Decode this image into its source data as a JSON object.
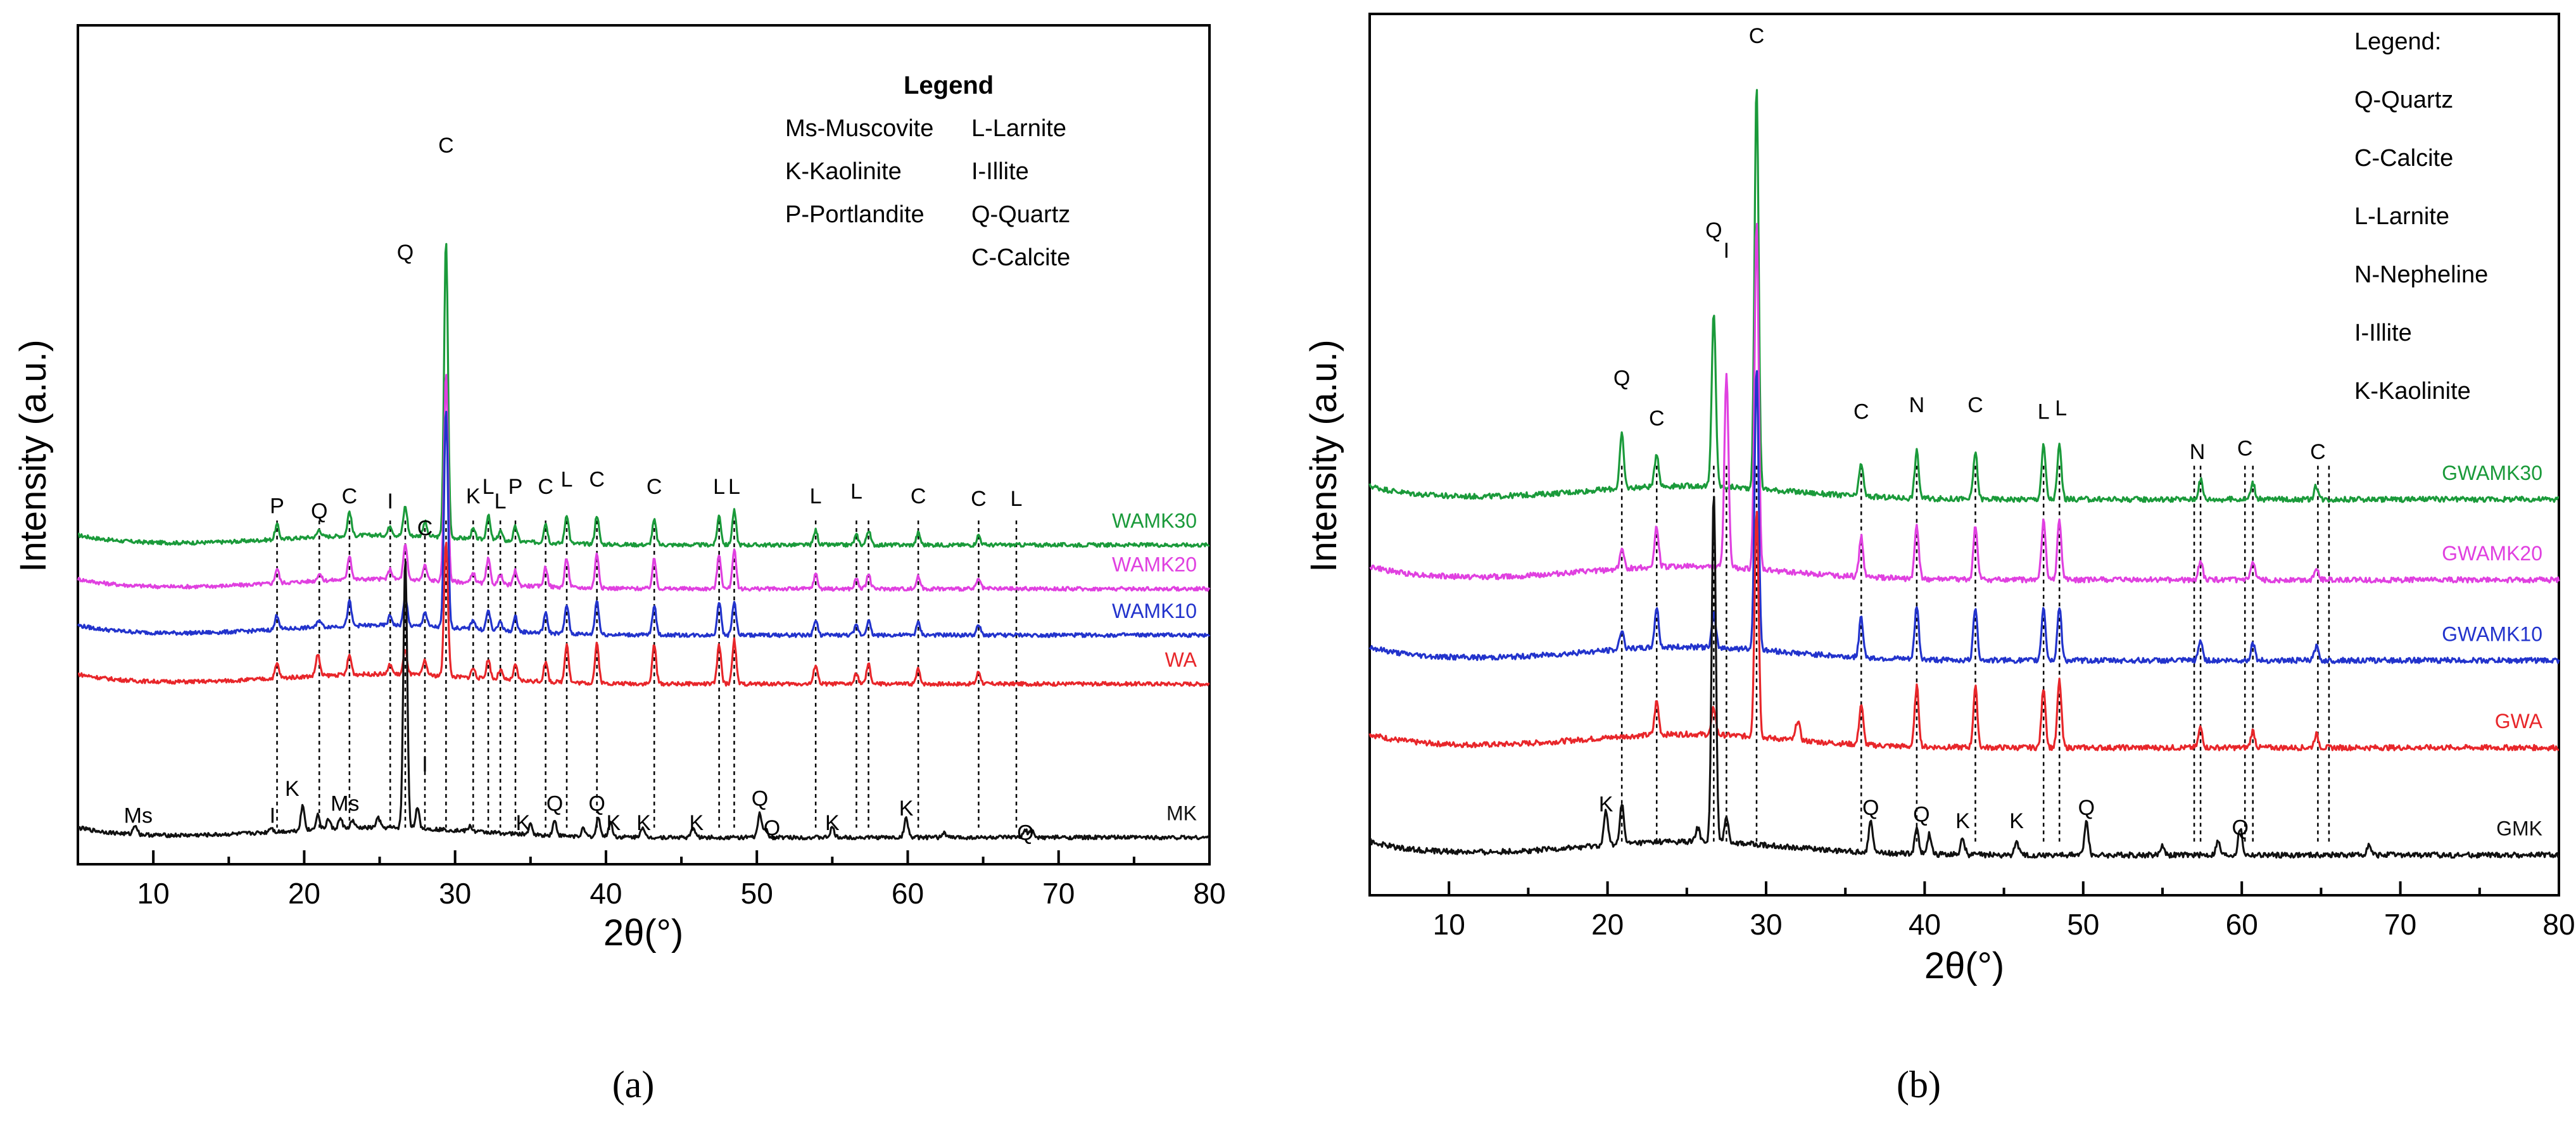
{
  "chart_data": [
    {
      "type": "line",
      "panel_label": "(a)",
      "xlabel": "2θ(°)",
      "ylabel": "Intensity (a.u.)",
      "xlim": [
        5,
        80
      ],
      "xticks": [
        10,
        20,
        30,
        40,
        50,
        60,
        70,
        80
      ],
      "legend_title": "Legend",
      "legend_items": [
        "Ms-Muscovite",
        "K-Kaolinite",
        "P-Portlandite",
        "L-Larnite",
        "I-Illite",
        "Q-Quartz",
        "C-Calcite"
      ],
      "series": [
        {
          "name": "WAMK30",
          "color": "#1a9a3a",
          "baseline": 0.655,
          "peaks": [
            [
              18.2,
              0.03
            ],
            [
              21,
              0.015
            ],
            [
              23,
              0.05
            ],
            [
              25.7,
              0.02
            ],
            [
              26.7,
              0.06
            ],
            [
              28,
              0.03
            ],
            [
              29.4,
              0.61
            ],
            [
              31.2,
              0.02
            ],
            [
              32.2,
              0.05
            ],
            [
              33,
              0.02
            ],
            [
              34,
              0.03
            ],
            [
              36,
              0.04
            ],
            [
              37.4,
              0.06
            ],
            [
              39.4,
              0.06
            ],
            [
              43.2,
              0.05
            ],
            [
              47.5,
              0.06
            ],
            [
              48.5,
              0.07
            ],
            [
              53.9,
              0.03
            ],
            [
              56.6,
              0.02
            ],
            [
              57.4,
              0.03
            ],
            [
              60.7,
              0.025
            ],
            [
              64.7,
              0.02
            ]
          ]
        },
        {
          "name": "WAMK20",
          "color": "#e040e0",
          "baseline": 0.565,
          "peaks": [
            [
              18.2,
              0.03
            ],
            [
              21,
              0.015
            ],
            [
              23,
              0.05
            ],
            [
              25.7,
              0.02
            ],
            [
              26.7,
              0.07
            ],
            [
              28,
              0.03
            ],
            [
              29.4,
              0.43
            ],
            [
              31.2,
              0.02
            ],
            [
              32.2,
              0.05
            ],
            [
              33,
              0.02
            ],
            [
              34,
              0.03
            ],
            [
              36,
              0.04
            ],
            [
              37.4,
              0.06
            ],
            [
              39.4,
              0.07
            ],
            [
              43.2,
              0.06
            ],
            [
              47.5,
              0.07
            ],
            [
              48.5,
              0.08
            ],
            [
              53.9,
              0.03
            ],
            [
              56.6,
              0.02
            ],
            [
              57.4,
              0.03
            ],
            [
              60.7,
              0.025
            ],
            [
              64.7,
              0.02
            ]
          ]
        },
        {
          "name": "WAMK10",
          "color": "#2233cc",
          "baseline": 0.47,
          "peaks": [
            [
              18.2,
              0.03
            ],
            [
              21,
              0.015
            ],
            [
              23,
              0.05
            ],
            [
              25.7,
              0.02
            ],
            [
              26.7,
              0.06
            ],
            [
              28,
              0.03
            ],
            [
              29.4,
              0.45
            ],
            [
              31.2,
              0.02
            ],
            [
              32.2,
              0.04
            ],
            [
              33,
              0.02
            ],
            [
              34,
              0.03
            ],
            [
              36,
              0.04
            ],
            [
              37.4,
              0.06
            ],
            [
              39.4,
              0.07
            ],
            [
              43.2,
              0.06
            ],
            [
              47.5,
              0.07
            ],
            [
              48.5,
              0.07
            ],
            [
              53.9,
              0.03
            ],
            [
              56.6,
              0.02
            ],
            [
              57.4,
              0.03
            ],
            [
              60.7,
              0.025
            ],
            [
              64.7,
              0.02
            ]
          ]
        },
        {
          "name": "WA",
          "color": "#e8262a",
          "baseline": 0.37,
          "peaks": [
            [
              18.2,
              0.03
            ],
            [
              20.9,
              0.045
            ],
            [
              23,
              0.04
            ],
            [
              25.7,
              0.02
            ],
            [
              26.7,
              0.05
            ],
            [
              28,
              0.03
            ],
            [
              29.4,
              0.28
            ],
            [
              31.2,
              0.02
            ],
            [
              32.2,
              0.04
            ],
            [
              33,
              0.02
            ],
            [
              34,
              0.03
            ],
            [
              36,
              0.04
            ],
            [
              37.4,
              0.08
            ],
            [
              39.4,
              0.08
            ],
            [
              43.2,
              0.08
            ],
            [
              47.5,
              0.08
            ],
            [
              48.5,
              0.09
            ],
            [
              53.9,
              0.04
            ],
            [
              56.6,
              0.02
            ],
            [
              57.4,
              0.04
            ],
            [
              60.7,
              0.03
            ],
            [
              64.7,
              0.025
            ]
          ]
        },
        {
          "name": "MK",
          "color": "#111111",
          "baseline": 0.055,
          "peaks": [
            [
              8.8,
              0.02
            ],
            [
              17.8,
              0.01
            ],
            [
              19.9,
              0.05
            ],
            [
              20.9,
              0.03
            ],
            [
              21.6,
              0.02
            ],
            [
              22.4,
              0.02
            ],
            [
              23.2,
              0.015
            ],
            [
              24.9,
              0.02
            ],
            [
              26.7,
              0.55
            ],
            [
              27.5,
              0.04
            ],
            [
              31,
              0.01
            ],
            [
              35,
              0.02
            ],
            [
              36.6,
              0.03
            ],
            [
              38.5,
              0.015
            ],
            [
              39.5,
              0.04
            ],
            [
              40.3,
              0.03
            ],
            [
              42.4,
              0.02
            ],
            [
              45.8,
              0.02
            ],
            [
              50.2,
              0.05
            ],
            [
              50.6,
              0.015
            ],
            [
              55,
              0.02
            ],
            [
              59.9,
              0.04
            ],
            [
              62.4,
              0.01
            ],
            [
              67.8,
              0.015
            ],
            [
              68.2,
              0.015
            ]
          ]
        }
      ],
      "peak_labels": [
        {
          "text": "P",
          "x": 18.2,
          "y": 0.72
        },
        {
          "text": "Q",
          "x": 21,
          "y": 0.71
        },
        {
          "text": "C",
          "x": 23,
          "y": 0.74
        },
        {
          "text": "I",
          "x": 25.7,
          "y": 0.73
        },
        {
          "text": "Q",
          "x": 26.7,
          "y": 1.24
        },
        {
          "text": "C",
          "x": 28,
          "y": 0.675
        },
        {
          "text": "C",
          "x": 29.4,
          "y": 1.46
        },
        {
          "text": "K",
          "x": 31.2,
          "y": 0.74
        },
        {
          "text": "L",
          "x": 32.2,
          "y": 0.76
        },
        {
          "text": "L",
          "x": 33,
          "y": 0.73
        },
        {
          "text": "P",
          "x": 34,
          "y": 0.76
        },
        {
          "text": "C",
          "x": 36,
          "y": 0.76
        },
        {
          "text": "L",
          "x": 37.4,
          "y": 0.775
        },
        {
          "text": "C",
          "x": 39.4,
          "y": 0.775
        },
        {
          "text": "C",
          "x": 43.2,
          "y": 0.76
        },
        {
          "text": "L",
          "x": 47.5,
          "y": 0.76
        },
        {
          "text": "L",
          "x": 48.5,
          "y": 0.76
        },
        {
          "text": "L",
          "x": 53.9,
          "y": 0.74
        },
        {
          "text": "L",
          "x": 56.6,
          "y": 0.75
        },
        {
          "text": "C",
          "x": 60.7,
          "y": 0.74
        },
        {
          "text": "C",
          "x": 64.7,
          "y": 0.735
        },
        {
          "text": "L",
          "x": 67.2,
          "y": 0.735
        },
        {
          "text": "Ms",
          "x": 9,
          "y": 0.085
        },
        {
          "text": "I",
          "x": 17.9,
          "y": 0.085
        },
        {
          "text": "K",
          "x": 19.2,
          "y": 0.14
        },
        {
          "text": "Ms",
          "x": 22.7,
          "y": 0.11
        },
        {
          "text": "I",
          "x": 28,
          "y": 0.19
        },
        {
          "text": "K",
          "x": 34.5,
          "y": 0.07
        },
        {
          "text": "Q",
          "x": 36.6,
          "y": 0.11
        },
        {
          "text": "Q",
          "x": 39.4,
          "y": 0.11
        },
        {
          "text": "K",
          "x": 40.5,
          "y": 0.07
        },
        {
          "text": "K",
          "x": 42.5,
          "y": 0.07
        },
        {
          "text": "K",
          "x": 46,
          "y": 0.07
        },
        {
          "text": "Q",
          "x": 50.2,
          "y": 0.12
        },
        {
          "text": "Q",
          "x": 51,
          "y": 0.06
        },
        {
          "text": "K",
          "x": 55,
          "y": 0.07
        },
        {
          "text": "K",
          "x": 59.9,
          "y": 0.1
        },
        {
          "text": "Q",
          "x": 67.8,
          "y": 0.05
        }
      ],
      "guides": [
        18.2,
        21,
        23,
        25.7,
        26.7,
        28,
        29.4,
        31.2,
        32.2,
        33,
        34,
        36,
        37.4,
        39.4,
        43.2,
        47.5,
        48.5,
        53.9,
        56.6,
        57.4,
        60.7,
        64.7,
        67.2
      ]
    },
    {
      "type": "line",
      "panel_label": "(b)",
      "xlabel": "2θ(°)",
      "ylabel": "Intensity (a.u.)",
      "xlim": [
        5,
        80
      ],
      "xticks": [
        10,
        20,
        30,
        40,
        50,
        60,
        70,
        80
      ],
      "legend_title": "Legend:",
      "legend_items": [
        "Q-Quartz",
        "C-Calcite",
        "L-Larnite",
        "N-Nepheline",
        "I-Illite",
        "K-Kaolinite"
      ],
      "series": [
        {
          "name": "GWAMK30",
          "color": "#1a9a3a",
          "baseline": 0.59,
          "peaks": [
            [
              20.9,
              0.08
            ],
            [
              23.1,
              0.05
            ],
            [
              26.7,
              0.26
            ],
            [
              29.4,
              0.6
            ],
            [
              36,
              0.05
            ],
            [
              39.5,
              0.07
            ],
            [
              43.2,
              0.07
            ],
            [
              47.5,
              0.08
            ],
            [
              48.5,
              0.08
            ],
            [
              57.4,
              0.03
            ],
            [
              60.7,
              0.025
            ],
            [
              64.7,
              0.02
            ]
          ]
        },
        {
          "name": "GWAMK20",
          "color": "#e040e0",
          "baseline": 0.47,
          "peaks": [
            [
              20.9,
              0.03
            ],
            [
              23.1,
              0.06
            ],
            [
              27.5,
              0.29
            ],
            [
              29.4,
              0.52
            ],
            [
              36,
              0.06
            ],
            [
              39.5,
              0.08
            ],
            [
              43.2,
              0.08
            ],
            [
              47.5,
              0.09
            ],
            [
              48.5,
              0.09
            ],
            [
              57.4,
              0.03
            ],
            [
              60.7,
              0.025
            ],
            [
              64.7,
              0.02
            ]
          ]
        },
        {
          "name": "GWAMK10",
          "color": "#2233cc",
          "baseline": 0.35,
          "peaks": [
            [
              20.9,
              0.03
            ],
            [
              23.1,
              0.06
            ],
            [
              26.7,
              0.05
            ],
            [
              29.4,
              0.42
            ],
            [
              36,
              0.06
            ],
            [
              39.5,
              0.08
            ],
            [
              43.2,
              0.08
            ],
            [
              47.5,
              0.08
            ],
            [
              48.5,
              0.08
            ],
            [
              57.4,
              0.03
            ],
            [
              60.7,
              0.025
            ],
            [
              64.7,
              0.02
            ]
          ]
        },
        {
          "name": "GWA",
          "color": "#e8262a",
          "baseline": 0.22,
          "peaks": [
            [
              23.1,
              0.05
            ],
            [
              26.7,
              0.04
            ],
            [
              29.4,
              0.34
            ],
            [
              32,
              0.03
            ],
            [
              36,
              0.06
            ],
            [
              39.5,
              0.09
            ],
            [
              43.2,
              0.09
            ],
            [
              47.5,
              0.09
            ],
            [
              48.5,
              0.1
            ],
            [
              57.4,
              0.03
            ],
            [
              60.7,
              0.025
            ],
            [
              64.7,
              0.02
            ]
          ]
        },
        {
          "name": "GMK",
          "color": "#111111",
          "baseline": 0.06,
          "peaks": [
            [
              19.9,
              0.05
            ],
            [
              20.9,
              0.06
            ],
            [
              25.7,
              0.02
            ],
            [
              26.7,
              0.52
            ],
            [
              27.5,
              0.04
            ],
            [
              36.6,
              0.05
            ],
            [
              39.5,
              0.04
            ],
            [
              40.3,
              0.03
            ],
            [
              42.4,
              0.025
            ],
            [
              45.8,
              0.02
            ],
            [
              50.2,
              0.05
            ],
            [
              55,
              0.015
            ],
            [
              58.5,
              0.02
            ],
            [
              59.9,
              0.04
            ],
            [
              68,
              0.015
            ]
          ]
        }
      ],
      "peak_labels": [
        {
          "text": "C",
          "x": 29.4,
          "y": 1.27
        },
        {
          "text": "Q",
          "x": 26.7,
          "y": 0.98
        },
        {
          "text": "I",
          "x": 27.5,
          "y": 0.95
        },
        {
          "text": "Q",
          "x": 20.9,
          "y": 0.76
        },
        {
          "text": "C",
          "x": 23.1,
          "y": 0.7
        },
        {
          "text": "C",
          "x": 36,
          "y": 0.71
        },
        {
          "text": "N",
          "x": 39.5,
          "y": 0.72
        },
        {
          "text": "C",
          "x": 43.2,
          "y": 0.72
        },
        {
          "text": "L",
          "x": 47.5,
          "y": 0.71
        },
        {
          "text": "L",
          "x": 48.6,
          "y": 0.715
        },
        {
          "text": "N",
          "x": 57.2,
          "y": 0.65
        },
        {
          "text": "C",
          "x": 60.2,
          "y": 0.655
        },
        {
          "text": "C",
          "x": 64.8,
          "y": 0.65
        },
        {
          "text": "K",
          "x": 19.9,
          "y": 0.125
        },
        {
          "text": "Q",
          "x": 36.6,
          "y": 0.12
        },
        {
          "text": "Q",
          "x": 39.8,
          "y": 0.11
        },
        {
          "text": "K",
          "x": 42.4,
          "y": 0.1
        },
        {
          "text": "K",
          "x": 45.8,
          "y": 0.1
        },
        {
          "text": "Q",
          "x": 50.2,
          "y": 0.12
        },
        {
          "text": "Q",
          "x": 59.9,
          "y": 0.09
        }
      ],
      "guides": [
        20.9,
        23.1,
        26.7,
        27.5,
        29.4,
        36,
        39.5,
        43.2,
        47.5,
        48.5,
        57,
        57.4,
        60.2,
        60.7,
        64.8,
        65.5
      ]
    }
  ]
}
